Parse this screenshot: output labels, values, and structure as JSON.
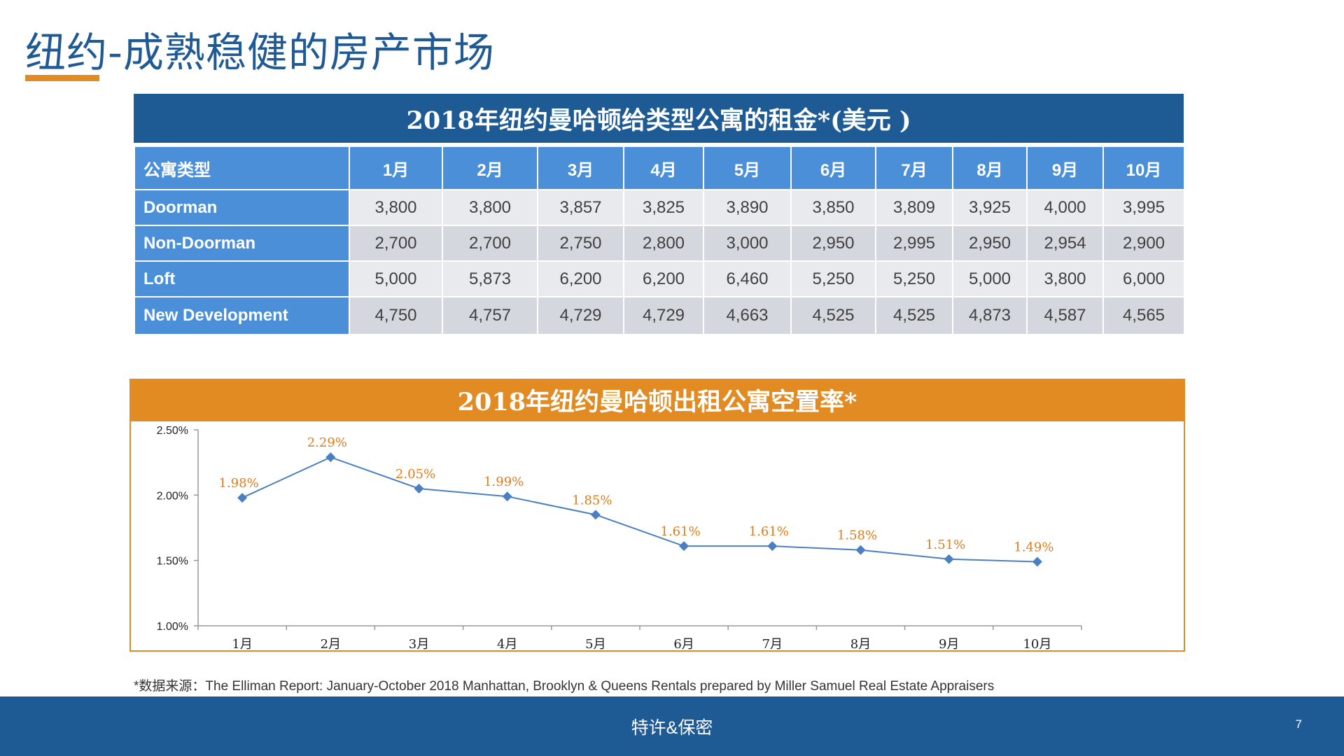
{
  "page": {
    "title": "纽约-成熟稳健的房产市场",
    "table_title": "2018年纽约曼哈顿给类型公寓的租金*(美元 )",
    "chart_title": "2018年纽约曼哈顿出租公寓空置率*",
    "source": "*数据来源：The Elliman Report: January-October 2018 Manhattan, Brooklyn & Queens Rentals prepared by Miller Samuel Real Estate Appraisers",
    "footer": "特许&保密",
    "page_number": "7"
  },
  "rent_table": {
    "headers": [
      "公寓类型",
      "1月",
      "2月",
      "3月",
      "4月",
      "5月",
      "6月",
      "7月",
      "8月",
      "9月",
      "10月"
    ],
    "rows": [
      {
        "type": "Doorman",
        "values": [
          "3,800",
          "3,800",
          "3,857",
          "3,825",
          "3,890",
          "3,850",
          "3,809",
          "3,925",
          "4,000",
          "3,995"
        ]
      },
      {
        "type": "Non-Doorman",
        "values": [
          "2,700",
          "2,700",
          "2,750",
          "2,800",
          "3,000",
          "2,950",
          "2,995",
          "2,950",
          "2,954",
          "2,900"
        ]
      },
      {
        "type": "Loft",
        "values": [
          "5,000",
          "5,873",
          "6,200",
          "6,200",
          "6,460",
          "5,250",
          "5,250",
          "5,000",
          "3,800",
          "6,000"
        ]
      },
      {
        "type": "New Development",
        "values": [
          "4,750",
          "4,757",
          "4,729",
          "4,729",
          "4,663",
          "4,525",
          "4,525",
          "4,873",
          "4,587",
          "4,565"
        ]
      }
    ]
  },
  "chart_data": {
    "type": "line",
    "title": "2018年纽约曼哈顿出租公寓空置率*",
    "categories": [
      "1月",
      "2月",
      "3月",
      "4月",
      "5月",
      "6月",
      "7月",
      "8月",
      "9月",
      "10月"
    ],
    "values": [
      1.98,
      2.29,
      2.05,
      1.99,
      1.85,
      1.61,
      1.61,
      1.58,
      1.51,
      1.49
    ],
    "data_labels": [
      "1.98%",
      "2.29%",
      "2.05%",
      "1.99%",
      "1.85%",
      "1.61%",
      "1.61%",
      "1.58%",
      "1.51%",
      "1.49%"
    ],
    "yticks": [
      "1.00%",
      "1.50%",
      "2.00%",
      "2.50%"
    ],
    "ylim": [
      1.0,
      2.5
    ],
    "xlabel": "",
    "ylabel": "",
    "grid": false,
    "colors": {
      "line": "#4a7fc1",
      "marker": "#4a7fc1",
      "label": "#e07b1a"
    }
  }
}
